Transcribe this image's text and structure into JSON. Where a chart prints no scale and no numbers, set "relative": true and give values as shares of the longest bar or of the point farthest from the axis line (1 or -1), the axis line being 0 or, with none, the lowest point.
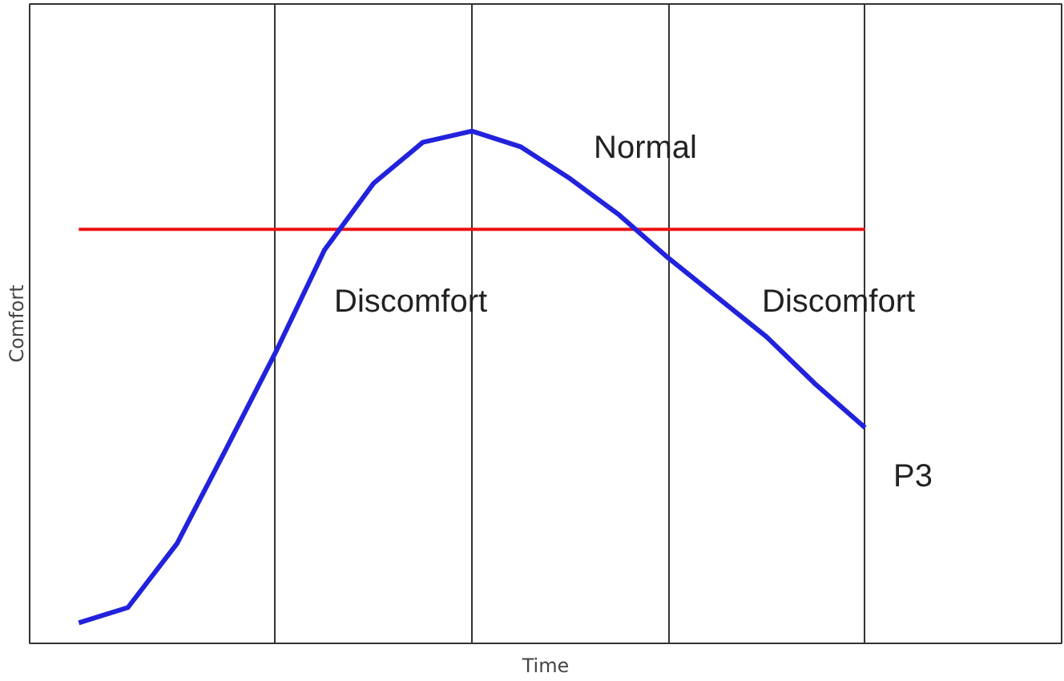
{
  "chart_data": {
    "type": "line",
    "relative": true,
    "xlabel": "Time",
    "ylabel": "Comfort",
    "categories": [
      null,
      null,
      null,
      null,
      null,
      null,
      null,
      null,
      null,
      null,
      null,
      null,
      null,
      null,
      null,
      null,
      null
    ],
    "series": [
      {
        "color": "#2222dd",
        "values": [
          0.04,
          0.07,
          0.195,
          0.38,
          0.567,
          0.768,
          0.898,
          0.978,
          1,
          0.969,
          0.907,
          0.836,
          0.752,
          0.675,
          0.598,
          0.505,
          0.421
        ]
      }
    ],
    "ref_lines": [
      {
        "axis": "y",
        "value": 0.808,
        "color": "#ee1111"
      }
    ],
    "annotations": [
      "Normal",
      "Discomfort",
      "Discomfort",
      "P3"
    ],
    "grid": "x",
    "marker": "none",
    "line_style": "solid"
  }
}
